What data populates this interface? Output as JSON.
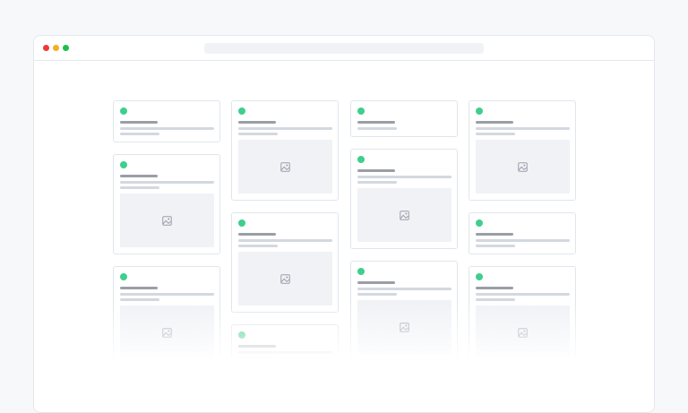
{
  "colors": {
    "close": "#f0383b",
    "minimize": "#f2b01e",
    "maximize": "#1dbf4f",
    "status_dot": "#3ecf8e",
    "title_bar": "#9a9ea6",
    "text_line": "#d3d8e0",
    "image_placeholder": "#f0f2f6"
  },
  "icons": {
    "image_placeholder": "image-icon"
  },
  "columns": [
    [
      {
        "type": "text",
        "lines": 3
      },
      {
        "type": "image",
        "lines": 3
      },
      {
        "type": "image",
        "lines": 3
      }
    ],
    [
      {
        "type": "image",
        "lines": 3
      },
      {
        "type": "image",
        "lines": 3
      },
      {
        "type": "text",
        "lines": 3
      }
    ],
    [
      {
        "type": "text",
        "lines": 2
      },
      {
        "type": "image",
        "lines": 3
      },
      {
        "type": "image",
        "lines": 3
      }
    ],
    [
      {
        "type": "image",
        "lines": 3
      },
      {
        "type": "text",
        "lines": 3
      },
      {
        "type": "image",
        "lines": 3
      }
    ]
  ]
}
